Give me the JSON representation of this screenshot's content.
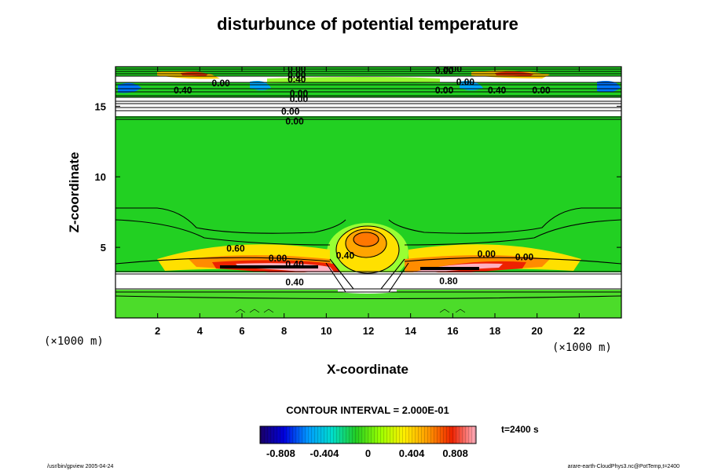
{
  "title": "disturbunce of potential temperature",
  "chart_data": {
    "type": "heatmap",
    "title": "disturbunce of potential temperature",
    "xlabel": "X-coordinate",
    "ylabel": "Z-coordinate",
    "x_unit": "(×1000 m)",
    "y_unit": "(×1000 m)",
    "xlim": [
      0,
      24
    ],
    "ylim": [
      0,
      17.8
    ],
    "x_ticks": [
      2,
      4,
      6,
      8,
      10,
      12,
      14,
      16,
      18,
      20,
      22
    ],
    "y_ticks": [
      5,
      10,
      15
    ],
    "contour_interval_text": "CONTOUR INTERVAL = 2.000E-01",
    "time_text": "t=2400 s",
    "colorbar": {
      "ticks": [
        -0.808,
        -0.404,
        0,
        0.404,
        0.808
      ],
      "tick_labels": [
        "-0.808",
        "-0.404",
        "0",
        "0.404",
        "0.808"
      ],
      "min": -1.0,
      "max": 1.0,
      "colors": [
        "#1a0066",
        "#0000dd",
        "#0099ff",
        "#00ddcc",
        "#22cc22",
        "#99ff00",
        "#ffee00",
        "#ff9900",
        "#ee2200",
        "#ffb0c0"
      ]
    },
    "contour_labels": [
      {
        "text": "0.00",
        "x": 8.6,
        "y": 17.4
      },
      {
        "text": "0.00",
        "x": 8.6,
        "y": 17.0
      },
      {
        "text": "0.40",
        "x": 8.6,
        "y": 16.7
      },
      {
        "text": "0.00",
        "x": 16.0,
        "y": 17.4
      },
      {
        "text": "0.00",
        "x": 15.6,
        "y": 17.3
      },
      {
        "text": "0.00",
        "x": 5.0,
        "y": 16.4
      },
      {
        "text": "0.40",
        "x": 3.2,
        "y": 15.9
      },
      {
        "text": "0.00",
        "x": 16.6,
        "y": 16.5
      },
      {
        "text": "0.00",
        "x": 15.6,
        "y": 15.9
      },
      {
        "text": "0.40",
        "x": 18.1,
        "y": 15.9
      },
      {
        "text": "0.00",
        "x": 20.2,
        "y": 15.9
      },
      {
        "text": "0.00",
        "x": 8.7,
        "y": 15.7
      },
      {
        "text": "0.00",
        "x": 8.7,
        "y": 15.3
      },
      {
        "text": "0.00",
        "x": 8.3,
        "y": 14.4
      },
      {
        "text": "0.00",
        "x": 8.5,
        "y": 13.7
      },
      {
        "text": "0.60",
        "x": 5.7,
        "y": 4.7
      },
      {
        "text": "0.00",
        "x": 7.7,
        "y": 4.0
      },
      {
        "text": "0.40",
        "x": 8.5,
        "y": 3.6
      },
      {
        "text": "0.40",
        "x": 10.9,
        "y": 4.2
      },
      {
        "text": "0.40",
        "x": 8.5,
        "y": 2.3
      },
      {
        "text": "0.80",
        "x": 15.8,
        "y": 2.4
      },
      {
        "text": "0.00",
        "x": 17.6,
        "y": 4.3
      },
      {
        "text": "0.00",
        "x": 19.4,
        "y": 4.1
      }
    ],
    "footer_left": "/usr/bin/gpview 2005-04-24",
    "footer_right": "arare-earth-CloudPhys3.nc@PotTemp,t=2400"
  }
}
